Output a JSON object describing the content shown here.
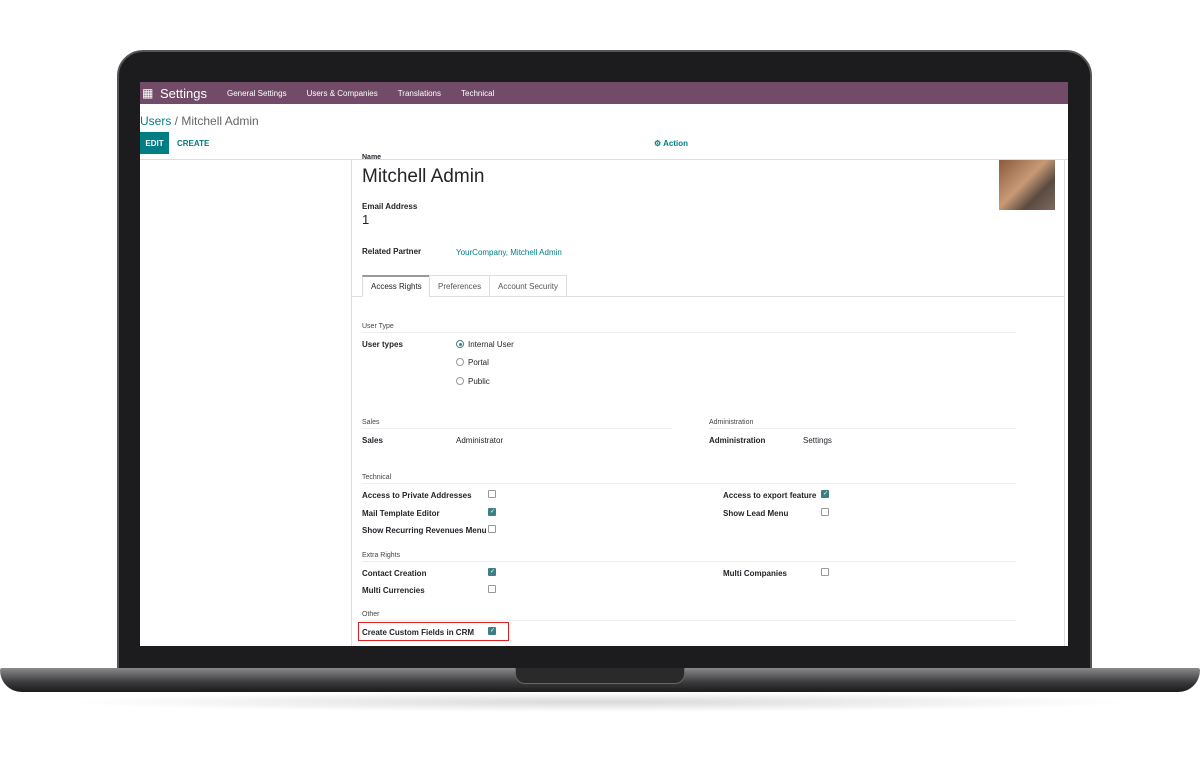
{
  "nav": {
    "app": "Settings",
    "menus": [
      "General Settings",
      "Users & Companies",
      "Translations",
      "Technical"
    ]
  },
  "breadcrumb": {
    "parent": "Users",
    "current": "Mitchell Admin"
  },
  "buttons": {
    "edit": "EDIT",
    "create": "CREATE",
    "action": "⚙ Action"
  },
  "form": {
    "name_label": "Name",
    "name": "Mitchell Admin",
    "email_label": "Email Address",
    "email": "1",
    "partner_label": "Related Partner",
    "partner": "YourCompany, Mitchell Admin"
  },
  "tabs": [
    "Access Rights",
    "Preferences",
    "Account Security"
  ],
  "user_type": {
    "section": "User Type",
    "label": "User types",
    "options": [
      {
        "label": "Internal User",
        "selected": true
      },
      {
        "label": "Portal",
        "selected": false
      },
      {
        "label": "Public",
        "selected": false
      }
    ]
  },
  "sales": {
    "section": "Sales",
    "label": "Sales",
    "value": "Administrator"
  },
  "administration": {
    "section": "Administration",
    "label": "Administration",
    "value": "Settings"
  },
  "technical": {
    "section": "Technical",
    "items": [
      {
        "label": "Access to Private Addresses",
        "checked": false
      },
      {
        "label": "Mail Template Editor",
        "checked": true
      },
      {
        "label": "Show Recurring Revenues Menu",
        "checked": false
      },
      {
        "label": "Access to export feature",
        "checked": true
      },
      {
        "label": "Show Lead Menu",
        "checked": false
      }
    ]
  },
  "extra": {
    "section": "Extra Rights",
    "items": [
      {
        "label": "Contact Creation",
        "checked": true
      },
      {
        "label": "Multi Currencies",
        "checked": false
      },
      {
        "label": "Multi Companies",
        "checked": false
      }
    ]
  },
  "other": {
    "section": "Other",
    "items": [
      {
        "label": "Create Custom Fields in CRM",
        "checked": true
      }
    ]
  },
  "colors": {
    "nav": "#714b67",
    "accent": "#017e84",
    "highlight": "#e02020"
  }
}
